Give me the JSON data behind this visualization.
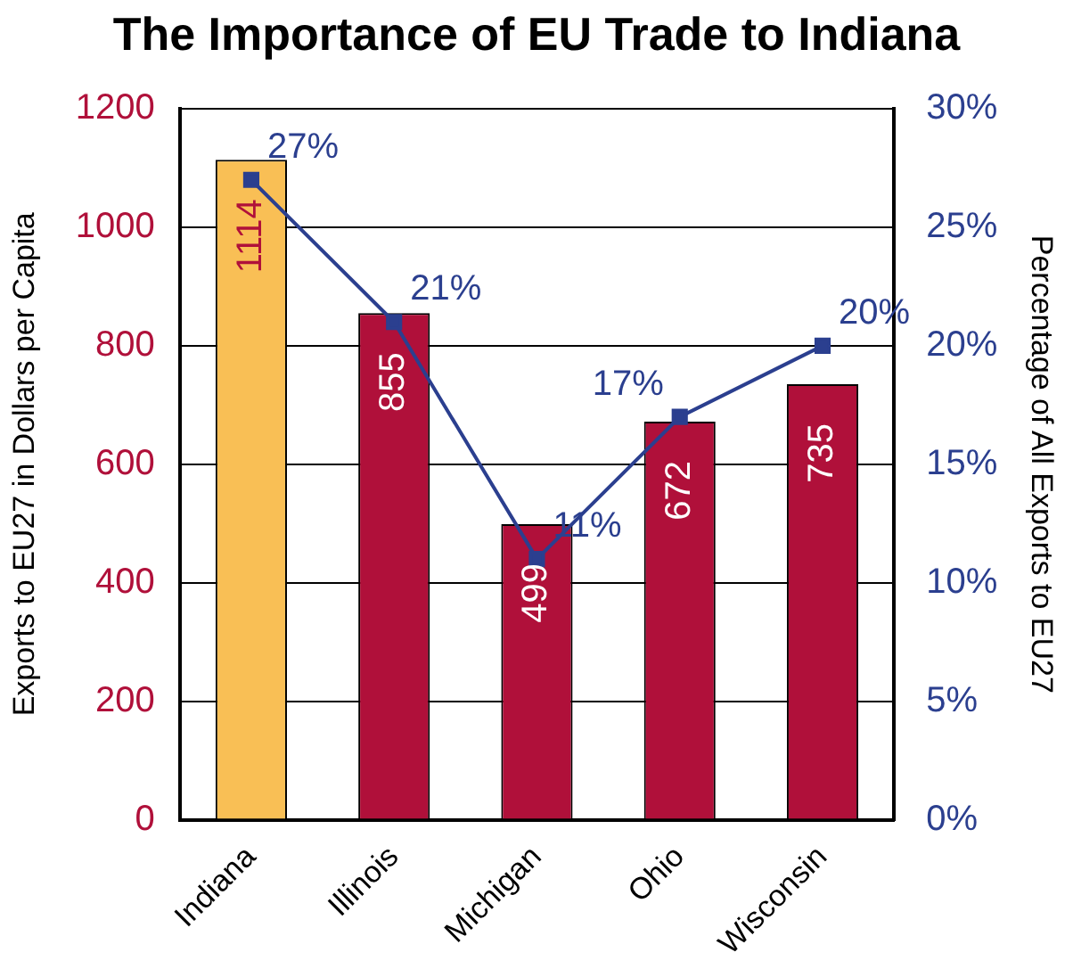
{
  "chart_data": {
    "type": "bar",
    "title": "The Importance of EU Trade to Indiana",
    "ylabel": "Exports to EU27 in Dollars per Capita",
    "y2label": "Percentage of All Exports to EU27",
    "categories": [
      "Indiana",
      "Illinois",
      "Michigan",
      "Ohio",
      "Wisconsin"
    ],
    "series": [
      {
        "colors": [
          "#f9bf55",
          "#b0103a",
          "#b0103a",
          "#b0103a",
          "#b0103a"
        ],
        "values": [
          1114,
          855,
          499,
          672,
          735
        ]
      },
      {
        "type": "line",
        "axis": "y2",
        "color": "#2b3f8f",
        "marker": "square",
        "values": [
          27,
          21,
          11,
          17,
          20
        ],
        "value_labels": [
          "27%",
          "21%",
          "11%",
          "17%",
          "20%"
        ]
      }
    ],
    "data_labels": true,
    "ylim": [
      0,
      1200
    ],
    "yticks": [
      0,
      200,
      400,
      600,
      800,
      1000,
      1200
    ],
    "y2lim": [
      0,
      30
    ],
    "y2ticks": [
      {
        "value": 0,
        "label": "0%"
      },
      {
        "value": 5,
        "label": "5%"
      },
      {
        "value": 10,
        "label": "10%"
      },
      {
        "value": 15,
        "label": "15%"
      },
      {
        "value": 20,
        "label": "20%"
      },
      {
        "value": 25,
        "label": "25%"
      },
      {
        "value": 30,
        "label": "30%"
      }
    ],
    "grid": "y",
    "legend": false
  }
}
